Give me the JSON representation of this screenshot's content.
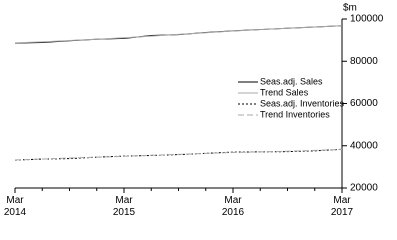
{
  "chart_data": {
    "type": "line",
    "y_unit": "$m",
    "categories": [
      "Mar 2014",
      null,
      null,
      null,
      "Mar 2015",
      null,
      null,
      null,
      "Mar 2016",
      null,
      null,
      null,
      "Mar 2017"
    ],
    "series": [
      {
        "name": "Seas.adj. Sales",
        "color": "#000000",
        "line_style": "solid",
        "values": [
          88600,
          88900,
          89700,
          90400,
          90800,
          92200,
          92600,
          93600,
          94400,
          95000,
          95600,
          96200,
          96800
        ]
      },
      {
        "name": "Trend Sales",
        "color": "#aaaaaa",
        "line_style": "solid",
        "values": [
          88700,
          89200,
          89800,
          90400,
          91100,
          91900,
          92700,
          93500,
          94300,
          95000,
          95600,
          96200,
          96800
        ]
      },
      {
        "name": "Seas.adj. Inventories",
        "color": "#000000",
        "line_style": "dotted",
        "values": [
          33200,
          33700,
          33900,
          34600,
          35100,
          35400,
          35800,
          36400,
          37000,
          37100,
          37200,
          37600,
          38300
        ]
      },
      {
        "name": "Trend Inventories",
        "color": "#aaaaaa",
        "line_style": "dashed",
        "values": [
          33300,
          33700,
          34200,
          34600,
          35000,
          35500,
          35900,
          36400,
          36800,
          37100,
          37400,
          37800,
          38200
        ]
      }
    ],
    "ylim": [
      20000,
      100000
    ],
    "yticks": [
      20000,
      40000,
      60000,
      80000,
      100000
    ],
    "y_axis_side": "right",
    "legend": "right"
  }
}
